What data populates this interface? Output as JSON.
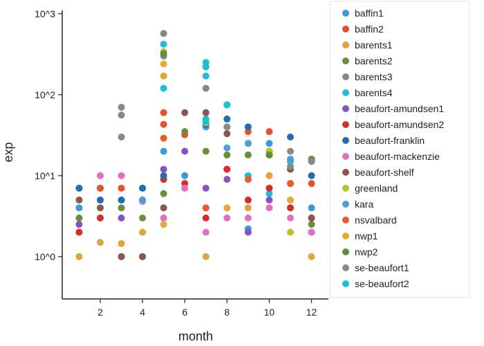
{
  "chart_data": {
    "type": "scatter",
    "title": "",
    "xlabel": "month",
    "ylabel": "exp",
    "xlim": [
      0.2,
      12.8
    ],
    "ylim": [
      0.3,
      1100
    ],
    "yscale": "log",
    "xticks": [
      2,
      4,
      6,
      8,
      10,
      12
    ],
    "xtick_labels": [
      "2",
      "4",
      "6",
      "8",
      "10",
      "12"
    ],
    "yticks": [
      1,
      10,
      100,
      1000
    ],
    "ytick_labels": [
      "10^0",
      "10^1",
      "10^2",
      "10^3"
    ],
    "grid": false,
    "legend_position": "right",
    "series": [
      {
        "name": "baffin1",
        "color": "#3a9ad9",
        "points": [
          [
            1,
            4
          ],
          [
            2,
            7
          ],
          [
            3,
            5
          ],
          [
            4,
            7
          ],
          [
            5,
            20
          ],
          [
            6,
            10
          ],
          [
            7,
            40
          ],
          [
            8,
            12
          ],
          [
            9,
            2.2
          ],
          [
            10,
            25
          ],
          [
            11,
            4
          ],
          [
            12,
            4
          ]
        ]
      },
      {
        "name": "baffin2",
        "color": "#e8502b",
        "points": [
          [
            1,
            7
          ],
          [
            2,
            7
          ],
          [
            3,
            7
          ],
          [
            5,
            60
          ],
          [
            5,
            43
          ],
          [
            6,
            32
          ],
          [
            7,
            4
          ],
          [
            8,
            12
          ],
          [
            9,
            35
          ],
          [
            10,
            35
          ],
          [
            11,
            8
          ],
          [
            12,
            8
          ]
        ]
      },
      {
        "name": "barents1",
        "color": "#e0a43a",
        "points": [
          [
            1,
            1
          ],
          [
            2,
            1.5
          ],
          [
            3,
            1.45
          ],
          [
            4,
            2
          ],
          [
            5,
            340
          ],
          [
            5,
            170
          ],
          [
            7,
            1
          ],
          [
            8,
            4
          ],
          [
            9,
            4
          ],
          [
            10,
            10
          ],
          [
            11,
            5
          ],
          [
            12,
            1
          ]
        ]
      },
      {
        "name": "barents2",
        "color": "#6a8f3a",
        "points": [
          [
            1,
            3
          ],
          [
            3,
            4
          ],
          [
            4,
            3
          ],
          [
            5,
            6
          ],
          [
            6,
            35
          ],
          [
            7,
            20
          ],
          [
            8,
            18
          ],
          [
            9,
            18
          ],
          [
            10,
            18
          ],
          [
            11,
            15
          ],
          [
            12,
            2.5
          ]
        ]
      },
      {
        "name": "barents3",
        "color": "#888888",
        "points": [
          [
            3,
            70
          ],
          [
            3,
            56
          ],
          [
            3,
            30
          ],
          [
            5,
            570
          ],
          [
            5,
            300
          ],
          [
            7,
            120
          ],
          [
            8,
            40
          ],
          [
            11,
            20
          ]
        ]
      },
      {
        "name": "barents4",
        "color": "#1fbed6",
        "points": [
          [
            5,
            420
          ],
          [
            5,
            120
          ],
          [
            7,
            250
          ],
          [
            7,
            220
          ],
          [
            7,
            170
          ],
          [
            7,
            50
          ],
          [
            8,
            75
          ],
          [
            9,
            10
          ],
          [
            10,
            6
          ],
          [
            11,
            15
          ]
        ]
      },
      {
        "name": "beaufort-amundsen1",
        "color": "#8553c2",
        "points": [
          [
            1,
            2.5
          ],
          [
            3,
            3
          ],
          [
            4,
            5
          ],
          [
            5,
            12
          ],
          [
            6,
            20
          ],
          [
            7,
            7
          ],
          [
            8,
            9
          ],
          [
            9,
            2
          ],
          [
            10,
            5
          ],
          [
            12,
            2
          ]
        ]
      },
      {
        "name": "beaufort-amundsen2",
        "color": "#d92b2b",
        "points": [
          [
            1,
            2
          ],
          [
            2,
            3
          ],
          [
            3,
            1
          ],
          [
            4,
            1
          ],
          [
            5,
            9
          ],
          [
            6,
            8
          ],
          [
            7,
            3
          ],
          [
            8,
            12
          ],
          [
            9,
            5
          ],
          [
            10,
            7
          ],
          [
            11,
            4
          ],
          [
            12,
            3
          ]
        ]
      },
      {
        "name": "beaufort-franklin",
        "color": "#1f6fb2",
        "points": [
          [
            1,
            7
          ],
          [
            2,
            5
          ],
          [
            3,
            5
          ],
          [
            4,
            7
          ],
          [
            5,
            10
          ],
          [
            7,
            43
          ],
          [
            8,
            50
          ],
          [
            9,
            40
          ],
          [
            10,
            20
          ],
          [
            11,
            30
          ],
          [
            12,
            10
          ]
        ]
      },
      {
        "name": "beaufort-mackenzie",
        "color": "#e56fbf",
        "points": [
          [
            2,
            10
          ],
          [
            3,
            10
          ],
          [
            4,
            4.8
          ],
          [
            5,
            3
          ],
          [
            6,
            7
          ],
          [
            7,
            2
          ],
          [
            8,
            3
          ],
          [
            9,
            3
          ],
          [
            10,
            4
          ],
          [
            11,
            3
          ],
          [
            12,
            2
          ]
        ]
      },
      {
        "name": "beaufort-shelf",
        "color": "#8c564b",
        "points": [
          [
            1,
            5
          ],
          [
            2,
            4
          ],
          [
            3,
            1
          ],
          [
            4,
            1
          ],
          [
            5,
            4
          ],
          [
            6,
            60
          ],
          [
            7,
            60
          ],
          [
            8,
            33
          ],
          [
            9,
            25
          ],
          [
            10,
            20
          ],
          [
            11,
            12
          ],
          [
            12,
            3
          ]
        ]
      },
      {
        "name": "greenland",
        "color": "#b8c22a",
        "points": [
          [
            7,
            45
          ],
          [
            9,
            25
          ],
          [
            10,
            20
          ],
          [
            11,
            2
          ],
          [
            12,
            15
          ]
        ]
      },
      {
        "name": "kara",
        "color": "#4a9fe0",
        "points": [
          [
            4,
            5
          ],
          [
            8,
            22
          ],
          [
            9,
            25
          ],
          [
            11,
            16
          ],
          [
            12,
            15
          ]
        ]
      },
      {
        "name": "nsvalbard",
        "color": "#f05a28",
        "points": [
          [
            5,
            29
          ],
          [
            7,
            4
          ],
          [
            9,
            9
          ],
          [
            11,
            8
          ]
        ]
      },
      {
        "name": "nwp1",
        "color": "#e8a838",
        "points": [
          [
            5,
            240
          ],
          [
            5,
            2.5
          ],
          [
            8,
            4
          ],
          [
            11,
            5
          ]
        ]
      },
      {
        "name": "nwp2",
        "color": "#5d8f3d",
        "points": [
          [
            5,
            320
          ],
          [
            10,
            18
          ],
          [
            12,
            16
          ]
        ]
      },
      {
        "name": "se-beaufort1",
        "color": "#8a8a8a",
        "points": [
          [
            8,
            40
          ],
          [
            11,
            13
          ],
          [
            12,
            15
          ]
        ]
      },
      {
        "name": "se-beaufort2",
        "color": "#17c3d6",
        "points": [
          [
            7,
            47
          ],
          [
            8,
            75
          ]
        ]
      }
    ]
  }
}
